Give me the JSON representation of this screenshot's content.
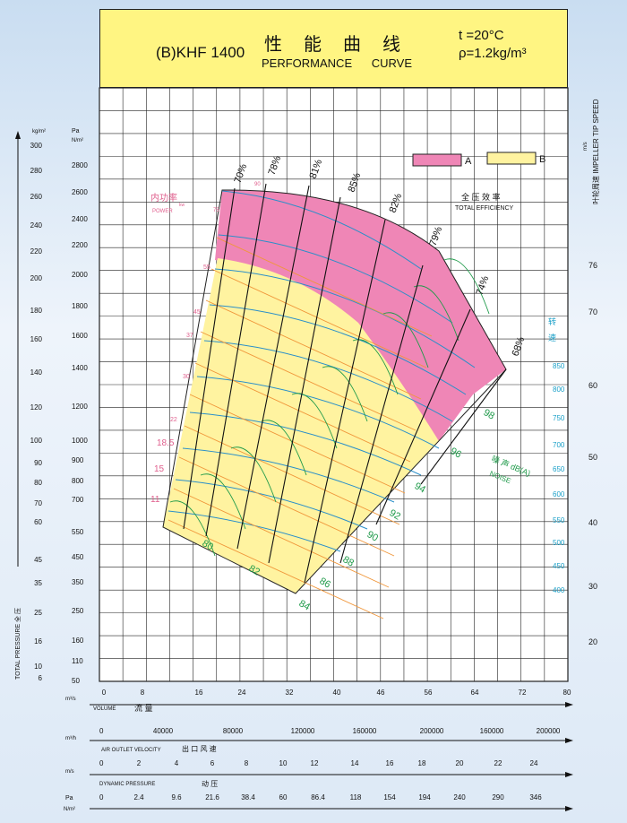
{
  "header": {
    "model": "(B)KHF 1400",
    "title_cn": "性能曲线",
    "title_en": "PERFORMANCE   CURVE",
    "temperature": "t =20°C",
    "density": "ρ=1.2kg/m³"
  },
  "legend": {
    "a_label": "A",
    "b_label": "B",
    "a_color": "#ef86b6",
    "b_color": "#fff3a0",
    "efficiency_cn": "全 压 效 率",
    "efficiency_en": "TOTAL EFFICIENCY"
  },
  "chart_data": {
    "type": "line",
    "left_axis_kg": {
      "unit": "kg/m²",
      "ticks": [
        "300",
        "280",
        "260",
        "240",
        "220",
        "200",
        "180",
        "160",
        "140",
        "120",
        "100",
        "90",
        "80",
        "70",
        "60",
        "45",
        "35",
        "25",
        "16",
        "10",
        "6"
      ]
    },
    "left_axis_pa": {
      "unit_top": "Pa",
      "unit_bottom": "N/m²",
      "ticks": [
        "2800",
        "2600",
        "2400",
        "2200",
        "2000",
        "1800",
        "1600",
        "1400",
        "1200",
        "1000",
        "900",
        "800",
        "700",
        "550",
        "450",
        "350",
        "250",
        "160",
        "110",
        "50"
      ]
    },
    "left_axis_label": "TOTAL PRESSURE 全 压",
    "right_axis": {
      "unit": "m/s",
      "label": "叶轮周速 IMPELLER TIP SPEED",
      "ticks": [
        "76",
        "70",
        "60",
        "50",
        "40",
        "30",
        "20"
      ]
    },
    "speed_label": "转 速",
    "speed_ticks": [
      "850",
      "800",
      "750",
      "700",
      "650",
      "600",
      "550",
      "500",
      "450",
      "400"
    ],
    "noise_label_cn": "噪 声 dB(A)",
    "noise_label_en": "NOISE",
    "noise_values": [
      "98",
      "96",
      "94",
      "92",
      "90",
      "88",
      "86",
      "84",
      "82",
      "80"
    ],
    "efficiency_values": [
      "70%",
      "78%",
      "81%",
      "85%",
      "82%",
      "79%",
      "74%",
      "68%"
    ],
    "power_label_cn": "内功率",
    "power_label_unit": "kw",
    "power_label_en": "POWER",
    "power_values": [
      "90",
      "75",
      "55",
      "45",
      "37",
      "30",
      "22",
      "18.5",
      "15",
      "11"
    ],
    "x_axis": {
      "unit": "m³/s",
      "ticks": [
        "0",
        "8",
        "16",
        "24",
        "32",
        "40",
        "46",
        "56",
        "64",
        "72",
        "80"
      ],
      "label_en": "VOLUME",
      "label_cn": "流 量"
    },
    "x_axis_mh": {
      "unit": "m³/h",
      "ticks": [
        "0",
        "40000",
        "80000",
        "120000",
        "160000",
        "200000",
        "160000",
        "200000"
      ]
    },
    "velocity": {
      "label_en": "AIR OUTLET VELOCITY",
      "label_cn": "出 口 风 速",
      "unit": "m/s",
      "ticks": [
        "0",
        "2",
        "4",
        "6",
        "8",
        "10",
        "12",
        "14",
        "16",
        "18",
        "20",
        "22",
        "24"
      ]
    },
    "dynamic": {
      "label_en": "DYNAMIC PRESSURE",
      "label_cn": "动 压",
      "unit_top": "Pa",
      "unit_bottom": "N/m²",
      "ticks": [
        "0",
        "2.4",
        "9.6",
        "21.6",
        "38.4",
        "60",
        "86.4",
        "118",
        "154",
        "194",
        "240",
        "290",
        "346"
      ]
    }
  }
}
